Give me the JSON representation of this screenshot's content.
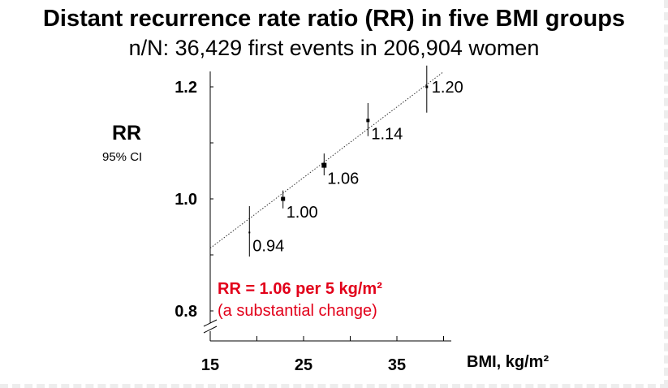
{
  "chart_data": {
    "type": "scatter",
    "title": "Distant recurrence rate ratio (RR) in five BMI groups",
    "subtitle": "n/N: 36,429 first events in 206,904 women",
    "ylabel": "RR",
    "ylabel_sub": "95% CI",
    "xlabel": "BMI, kg/m²",
    "xlim": [
      15,
      40
    ],
    "ylim": [
      0.8,
      1.22
    ],
    "x_ticks": [
      15,
      25,
      35
    ],
    "y_ticks": [
      0.8,
      1.0,
      1.2
    ],
    "x_tick_labels": [
      "15",
      "25",
      "35"
    ],
    "y_tick_labels": [
      "0.8",
      "1.0",
      "1.2"
    ],
    "points": [
      {
        "x": 19.2,
        "y": 0.94,
        "lo": 0.897,
        "hi": 0.987,
        "label": "0.94"
      },
      {
        "x": 22.8,
        "y": 1.0,
        "lo": 0.983,
        "hi": 1.015,
        "label": "1.00"
      },
      {
        "x": 27.2,
        "y": 1.06,
        "lo": 1.042,
        "hi": 1.081,
        "label": "1.06"
      },
      {
        "x": 31.9,
        "y": 1.14,
        "lo": 1.112,
        "hi": 1.171,
        "label": "1.14"
      },
      {
        "x": 38.2,
        "y": 1.2,
        "lo": 1.154,
        "hi": 1.238,
        "label": "1.20"
      }
    ],
    "trend": {
      "x_start": 15,
      "y_start": 0.912,
      "x_end": 40,
      "y_end": 1.227
    },
    "annotation_main": "RR = 1.06 per 5 kg/m²",
    "annotation_sub": "(a substantial change)"
  },
  "colors": {
    "annotation": "#e2001a",
    "ink": "#000000"
  }
}
